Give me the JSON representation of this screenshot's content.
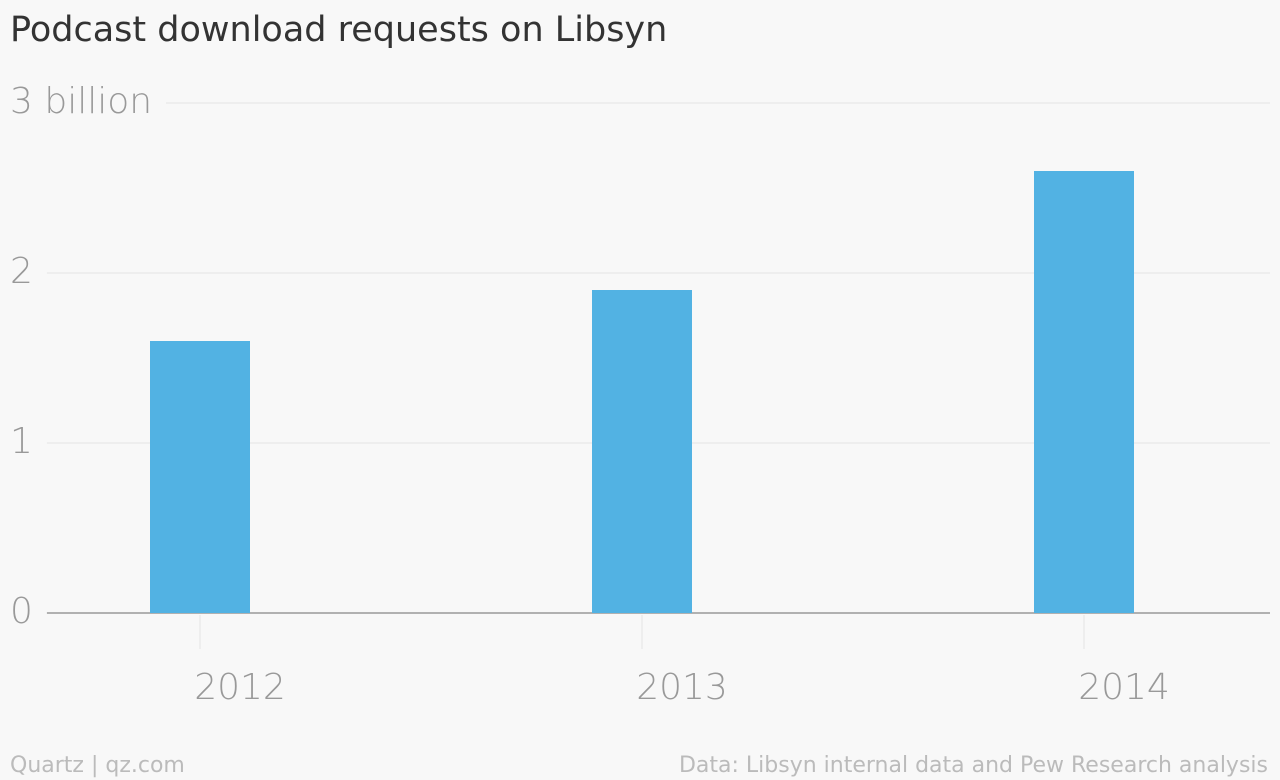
{
  "chart_data": {
    "type": "bar",
    "title": "Podcast download requests on Libsyn",
    "categories": [
      "2012",
      "2013",
      "2014"
    ],
    "values": [
      1.6,
      1.9,
      2.6
    ],
    "color": "#52b2e3",
    "ylim": [
      0,
      3
    ],
    "yticks": [
      0,
      1,
      2,
      {
        "value": 3,
        "label": "3 billion"
      }
    ],
    "grid": true,
    "source": "Data: Libsyn internal data and Pew Research analysis",
    "credit": "Quartz | qz.com"
  }
}
